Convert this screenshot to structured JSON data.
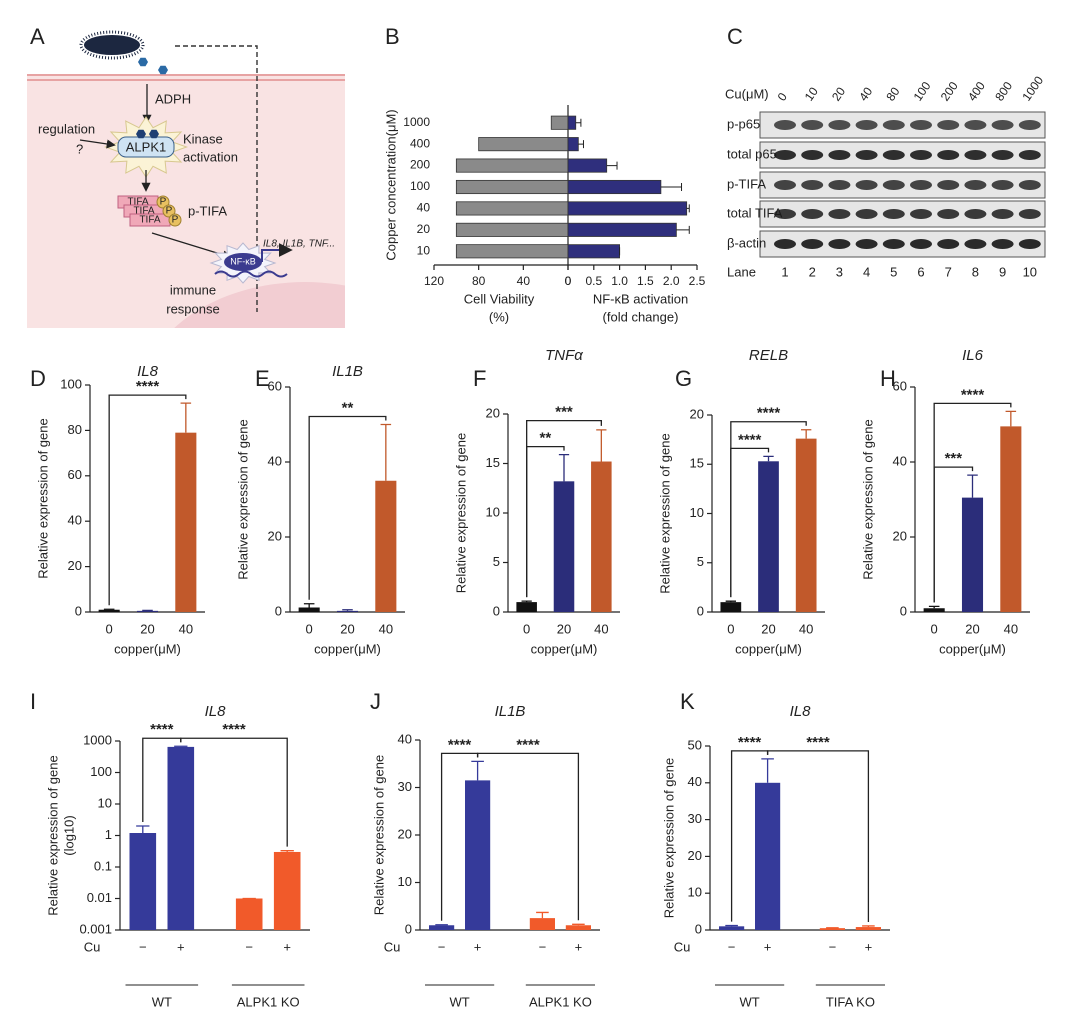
{
  "panel_labels": [
    "A",
    "B",
    "C",
    "D",
    "E",
    "F",
    "G",
    "H",
    "I",
    "J",
    "K"
  ],
  "diagram": {
    "ligand": "ADPH",
    "regulation": "regulation",
    "question": "?",
    "kinase": "ALPK1",
    "kinase_activation": [
      "Kinase",
      "activation"
    ],
    "tifa": [
      "TIFA",
      "TIFA",
      "TIFA"
    ],
    "phospho": [
      "P",
      "P",
      "P"
    ],
    "p_tifa": "p-TIFA",
    "nf_kb": "NF-κB",
    "genes": "IL8, IL1B, TNF...",
    "response": [
      "immune",
      "response"
    ]
  },
  "blot": {
    "cu_label": "Cu(μM)",
    "concentrations": [
      0,
      10,
      20,
      40,
      80,
      100,
      200,
      400,
      800,
      1000
    ],
    "rows": [
      "p-p65",
      "total p65",
      "p-TIFA",
      "total TIFA",
      "β-actin"
    ],
    "lane_label": "Lane",
    "lanes": [
      1,
      2,
      3,
      4,
      5,
      6,
      7,
      8,
      9,
      10
    ]
  },
  "chart_data": [
    {
      "type": "butterfly",
      "y_label": "Copper concentration(μM)",
      "categories": [
        1000,
        400,
        200,
        100,
        40,
        20,
        10
      ],
      "series": [
        {
          "label": [
            "Cell Viability",
            "(%)"
          ],
          "color": "#8a8a8a",
          "values": [
            15,
            80,
            100,
            100,
            100,
            100,
            100
          ],
          "xlim": [
            120,
            0
          ],
          "xticks": [
            120,
            80,
            40,
            0
          ]
        },
        {
          "label": [
            "NF-κB activation",
            "(fold change)"
          ],
          "color": "#2f2f7d",
          "values": [
            0.15,
            0.2,
            0.75,
            1.8,
            2.3,
            2.1,
            1.0
          ],
          "errors": [
            0.1,
            0.1,
            0.2,
            0.4,
            0.05,
            0.25,
            0
          ],
          "xlim": [
            0,
            2.5
          ],
          "xticks": [
            0,
            0.5,
            {
              "value": 1,
              "label": "1.0"
            },
            1.5,
            {
              "value": 2,
              "label": "2.0"
            },
            2.5
          ]
        }
      ]
    },
    {
      "type": "bar",
      "title": "IL8",
      "y_label": "Relative expression of gene",
      "x_label": "copper(μM)",
      "categories": [
        0,
        20,
        40
      ],
      "colors": [
        "#111111",
        "#2b2d7a",
        "#c1592b"
      ],
      "values": [
        1,
        0.5,
        79
      ],
      "errors": [
        0.2,
        0.2,
        13
      ],
      "ylim": [
        0,
        100
      ],
      "yticks": [
        0,
        20,
        40,
        60,
        80,
        100
      ],
      "significance": [
        {
          "from": 0,
          "to": 2,
          "label": "****"
        }
      ]
    },
    {
      "type": "bar",
      "title": "IL1B",
      "y_label": "Relative expression of gene",
      "x_label": "copper(μM)",
      "categories": [
        0,
        20,
        40
      ],
      "colors": [
        "#111111",
        "#2b2d7a",
        "#c1592b"
      ],
      "values": [
        1.2,
        0.3,
        35
      ],
      "errors": [
        1,
        0.3,
        15
      ],
      "ylim": [
        0,
        60
      ],
      "yticks": [
        0,
        20,
        40,
        60
      ],
      "significance": [
        {
          "from": 0,
          "to": 2,
          "label": "**"
        }
      ]
    },
    {
      "type": "bar",
      "title": "TNFα",
      "y_label": "Relative expression of gene",
      "x_label": "copper(μM)",
      "categories": [
        0,
        20,
        40
      ],
      "colors": [
        "#111111",
        "#2b2d7a",
        "#c1592b"
      ],
      "values": [
        1,
        13.2,
        15.2
      ],
      "errors": [
        0.1,
        2.7,
        3.2
      ],
      "ylim": [
        0,
        20
      ],
      "yticks": [
        0,
        5,
        10,
        15,
        20
      ],
      "significance": [
        {
          "from": 0,
          "to": 1,
          "label": "**"
        },
        {
          "from": 0,
          "to": 2,
          "label": "***"
        }
      ]
    },
    {
      "type": "bar",
      "title": "RELB",
      "y_label": "Relative expression of gene",
      "x_label": "copper(μM)",
      "categories": [
        0,
        20,
        40
      ],
      "colors": [
        "#111111",
        "#2b2d7a",
        "#c1592b"
      ],
      "values": [
        1,
        15.3,
        17.6
      ],
      "errors": [
        0.1,
        0.5,
        0.9
      ],
      "ylim": [
        0,
        20
      ],
      "yticks": [
        0,
        5,
        10,
        15,
        20
      ],
      "significance": [
        {
          "from": 0,
          "to": 1,
          "label": "****"
        },
        {
          "from": 0,
          "to": 2,
          "label": "****"
        }
      ]
    },
    {
      "type": "bar",
      "title": "IL6",
      "y_label": "Relative expression of gene",
      "x_label": "copper(μM)",
      "categories": [
        0,
        20,
        40
      ],
      "colors": [
        "#111111",
        "#2b2d7a",
        "#c1592b"
      ],
      "values": [
        1,
        30.5,
        49.5
      ],
      "errors": [
        0.5,
        6,
        4
      ],
      "ylim": [
        0,
        60
      ],
      "yticks": [
        0,
        20,
        40,
        60
      ],
      "significance": [
        {
          "from": 0,
          "to": 1,
          "label": "***"
        },
        {
          "from": 0,
          "to": 2,
          "label": "****"
        }
      ]
    },
    {
      "type": "bar",
      "title": "IL8",
      "y_label": "Relative expression of gene",
      "y_label_2": "(log10)",
      "log": true,
      "row_label": "Cu",
      "categories": [
        "−",
        "+",
        "−",
        "+"
      ],
      "groups": [
        "WT",
        "ALPK1 KO"
      ],
      "colors": [
        "#353a9a",
        "#353a9a",
        "#f15a2a",
        "#f15a2a"
      ],
      "values": [
        1.2,
        650,
        0.01,
        0.3
      ],
      "errors": [
        0.8,
        30,
        0,
        0.03
      ],
      "ylim": [
        0.001,
        1000
      ],
      "yticks": [
        0.001,
        0.01,
        0.1,
        1,
        10,
        100,
        1000
      ],
      "significance": [
        {
          "from": 0,
          "to": 1,
          "label": "****"
        },
        {
          "from": 1,
          "to": 3,
          "label": "****"
        }
      ]
    },
    {
      "type": "bar",
      "title": "IL1B",
      "y_label": "Relative expression of gene",
      "row_label": "Cu",
      "categories": [
        "−",
        "+",
        "−",
        "+"
      ],
      "groups": [
        "WT",
        "ALPK1 KO"
      ],
      "colors": [
        "#353a9a",
        "#353a9a",
        "#f15a2a",
        "#f15a2a"
      ],
      "values": [
        1,
        31.5,
        2.5,
        1
      ],
      "errors": [
        0.1,
        4,
        1.2,
        0.2
      ],
      "ylim": [
        0,
        40
      ],
      "yticks": [
        0,
        10,
        20,
        30,
        40
      ],
      "significance": [
        {
          "from": 0,
          "to": 1,
          "label": "****"
        },
        {
          "from": 1,
          "to": 3,
          "label": "****"
        }
      ]
    },
    {
      "type": "bar",
      "title": "IL8",
      "y_label": "Relative expression of gene",
      "row_label": "Cu",
      "categories": [
        "−",
        "+",
        "−",
        "+"
      ],
      "groups": [
        "WT",
        "TIFA KO"
      ],
      "colors": [
        "#353a9a",
        "#353a9a",
        "#f15a2a",
        "#f15a2a"
      ],
      "values": [
        1,
        40,
        0.5,
        0.8
      ],
      "errors": [
        0.2,
        6.5,
        0.1,
        0.3
      ],
      "ylim": [
        0,
        50
      ],
      "yticks": [
        0,
        10,
        20,
        30,
        40,
        50
      ],
      "significance": [
        {
          "from": 0,
          "to": 1,
          "label": "****"
        },
        {
          "from": 1,
          "to": 3,
          "label": "****"
        }
      ]
    }
  ]
}
